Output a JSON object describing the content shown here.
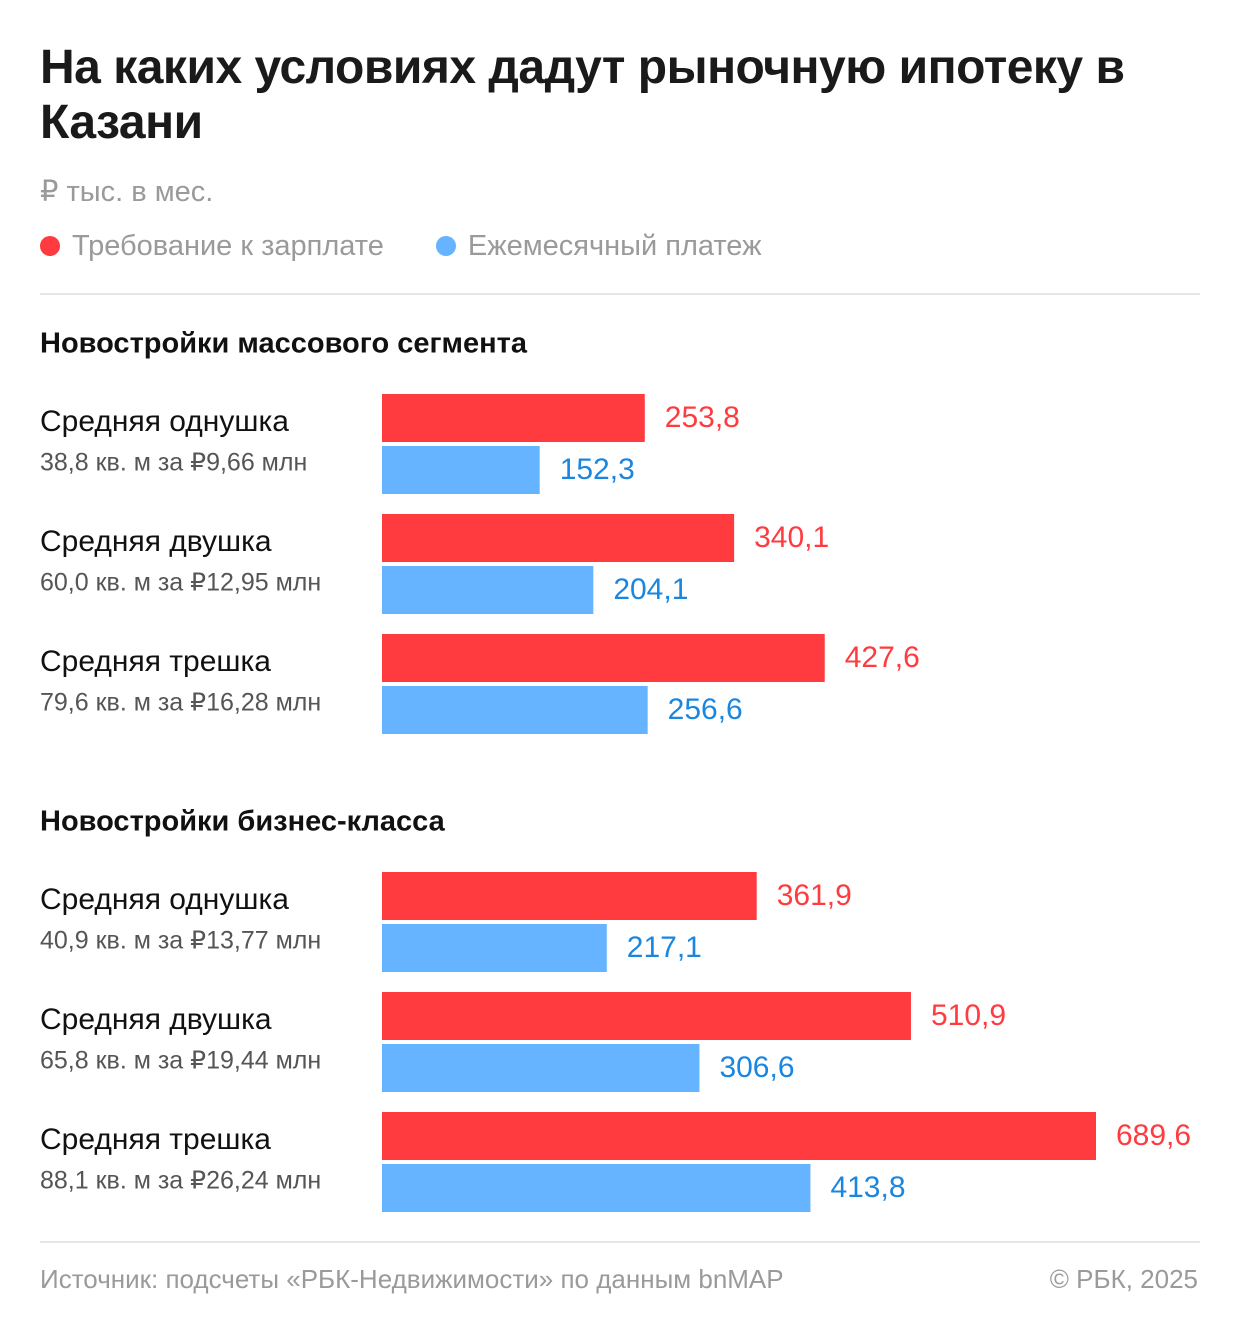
{
  "header": {
    "title": "На каких условиях дадут рыночную ипотеку в Казани",
    "subtitle": "₽ тыс. в мес."
  },
  "colors": {
    "salary": "#ff3b3f",
    "payment": "#66b3ff",
    "salary_text": "#ff3b3f",
    "payment_text": "#1a86e0"
  },
  "footer": {
    "source": "Источник: подсчеты «РБК-Недвижимости» по данным bnMAP",
    "copyright": "© РБК, 2025"
  },
  "chart_data": {
    "type": "bar",
    "orientation": "horizontal",
    "legend_position": "top",
    "grid": false,
    "xlim": [
      0,
      689.6
    ],
    "series_names": [
      "Требование к зарплате",
      "Ежемесячный платеж"
    ],
    "groups": [
      {
        "title": "Новостройки массового сегмента",
        "categories": [
          {
            "label": "Средняя однушка",
            "sub": "38,8 кв. м за ₽9,66 млн",
            "salary": 253.8,
            "payment": 152.3,
            "salary_text": "253,8",
            "payment_text": "152,3"
          },
          {
            "label": "Средняя двушка",
            "sub": "60,0 кв. м за ₽12,95 млн",
            "salary": 340.1,
            "payment": 204.1,
            "salary_text": "340,1",
            "payment_text": "204,1"
          },
          {
            "label": "Средняя трешка",
            "sub": "79,6 кв. м за ₽16,28 млн",
            "salary": 427.6,
            "payment": 256.6,
            "salary_text": "427,6",
            "payment_text": "256,6"
          }
        ]
      },
      {
        "title": "Новостройки бизнес-класса",
        "categories": [
          {
            "label": "Средняя однушка",
            "sub": "40,9 кв. м за ₽13,77 млн",
            "salary": 361.9,
            "payment": 217.1,
            "salary_text": "361,9",
            "payment_text": "217,1"
          },
          {
            "label": "Средняя двушка",
            "sub": "65,8 кв. м за ₽19,44 млн",
            "salary": 510.9,
            "payment": 306.6,
            "salary_text": "510,9",
            "payment_text": "306,6"
          },
          {
            "label": "Средняя трешка",
            "sub": "88,1 кв. м за ₽26,24 млн",
            "salary": 689.6,
            "payment": 413.8,
            "salary_text": "689,6",
            "payment_text": "413,8"
          }
        ]
      }
    ]
  }
}
